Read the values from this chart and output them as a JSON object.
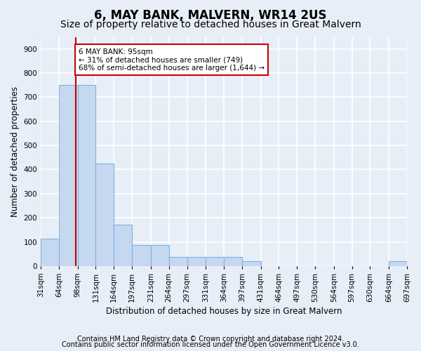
{
  "title": "6, MAY BANK, MALVERN, WR14 2US",
  "subtitle": "Size of property relative to detached houses in Great Malvern",
  "xlabel": "Distribution of detached houses by size in Great Malvern",
  "ylabel": "Number of detached properties",
  "footnote1": "Contains HM Land Registry data © Crown copyright and database right 2024.",
  "footnote2": "Contains public sector information licensed under the Open Government Licence v3.0.",
  "bin_edges": [
    31,
    64,
    98,
    131,
    164,
    197,
    231,
    264,
    297,
    331,
    364,
    397,
    431,
    464,
    497,
    530,
    564,
    597,
    630,
    664,
    697
  ],
  "bar_heights": [
    113,
    750,
    750,
    425,
    170,
    88,
    88,
    38,
    38,
    38,
    38,
    20,
    0,
    0,
    0,
    0,
    0,
    0,
    0,
    20
  ],
  "bar_color": "#c5d8f0",
  "bar_edge_color": "#7fb3e0",
  "property_size": 95,
  "property_line_color": "#cc0000",
  "annotation_text": "6 MAY BANK: 95sqm\n← 31% of detached houses are smaller (749)\n68% of semi-detached houses are larger (1,644) →",
  "annotation_box_color": "#ffffff",
  "annotation_box_edge_color": "#cc0000",
  "ylim": [
    0,
    950
  ],
  "yticks": [
    0,
    100,
    200,
    300,
    400,
    500,
    600,
    700,
    800,
    900
  ],
  "background_color": "#e8eef7",
  "grid_color": "#ffffff",
  "title_fontsize": 12,
  "subtitle_fontsize": 10,
  "axis_label_fontsize": 8.5,
  "tick_fontsize": 7.5,
  "annotation_fontsize": 7.5,
  "footnote_fontsize": 7
}
